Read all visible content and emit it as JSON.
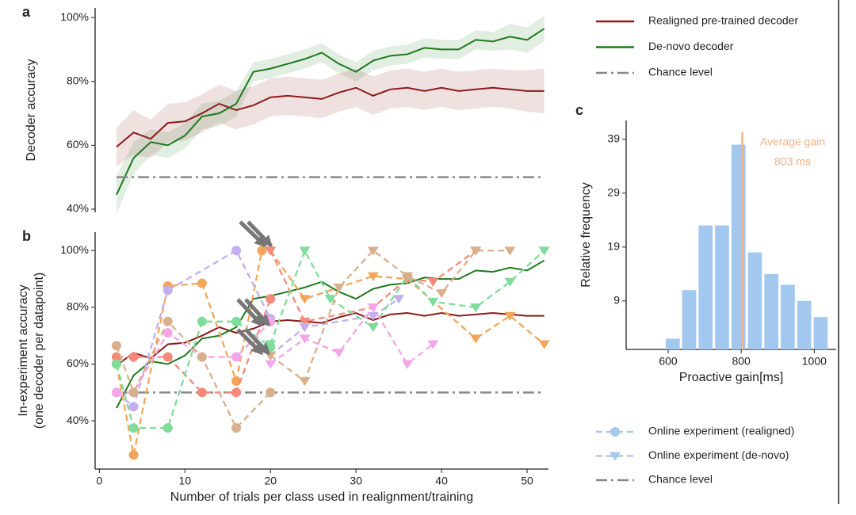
{
  "chart_data": [
    {
      "type": "line",
      "label": "a",
      "ylabel": "Decoder accuracy",
      "xlim": [
        -0.5,
        52.5
      ],
      "ylim": [
        39,
        103
      ],
      "yticks": [
        {
          "value": 40,
          "label": "40%"
        },
        {
          "value": 60,
          "label": "60%"
        },
        {
          "value": 80,
          "label": "80%"
        },
        {
          "value": 100,
          "label": "100%"
        }
      ],
      "series": [
        {
          "name": "Realigned pre-trained decoder",
          "color": "#8b1a1a",
          "x": [
            2,
            4,
            6,
            8,
            10,
            12,
            14,
            16,
            18,
            20,
            22,
            24,
            26,
            28,
            30,
            32,
            34,
            36,
            38,
            40,
            42,
            44,
            46,
            48,
            50,
            52
          ],
          "values": [
            59.5,
            64,
            62,
            67,
            67.5,
            70,
            73,
            71,
            72.5,
            75,
            75.5,
            75,
            74.5,
            76.5,
            78,
            75.5,
            77.5,
            78,
            77,
            78,
            77,
            77.5,
            78,
            77.5,
            77,
            77
          ],
          "error": [
            6,
            7,
            6,
            6,
            6,
            6,
            6,
            6,
            6,
            6,
            6,
            6,
            6,
            6,
            6,
            6,
            6,
            6,
            6,
            6,
            6,
            6,
            6,
            6,
            6.5,
            7
          ]
        },
        {
          "name": "De-novo decoder",
          "color": "#1e7a1e",
          "x": [
            2,
            4,
            6,
            8,
            10,
            12,
            14,
            16,
            18,
            20,
            22,
            24,
            26,
            28,
            30,
            32,
            34,
            36,
            38,
            40,
            42,
            44,
            46,
            48,
            50,
            52
          ],
          "values": [
            44.5,
            56,
            61,
            60,
            63,
            69,
            70,
            73,
            83,
            84,
            85.5,
            87,
            89,
            85.5,
            83,
            86.5,
            88,
            88.5,
            90.5,
            90,
            90,
            93,
            92.5,
            94,
            93,
            96.5
          ],
          "error": [
            6,
            5,
            4,
            4,
            4,
            4,
            4,
            4,
            3,
            3,
            3,
            3,
            3,
            3,
            3,
            3,
            3,
            3,
            3,
            3,
            3,
            3,
            3,
            4,
            4,
            4
          ]
        },
        {
          "name": "Chance level",
          "color": "#888888",
          "dash": "dashdot",
          "x": [
            2,
            52
          ],
          "values": [
            50,
            50
          ]
        }
      ]
    },
    {
      "type": "line",
      "label": "b",
      "ylabel": [
        "In-experiment accuracy",
        "(one decoder per datapoint)"
      ],
      "xlabel": "Number of trials per class used in realignment/training",
      "xlim": [
        -0.5,
        52.5
      ],
      "xticks": [
        0,
        10,
        20,
        30,
        40,
        50
      ],
      "ylim": [
        23,
        106.5
      ],
      "yticks": [
        {
          "value": 40,
          "label": "40%"
        },
        {
          "value": 60,
          "label": "60%"
        },
        {
          "value": 80,
          "label": "80%"
        },
        {
          "value": 100,
          "label": "100%"
        }
      ],
      "series": [
        {
          "color": "#8b1a1a",
          "x": [
            2,
            4,
            6,
            8,
            10,
            12,
            14,
            16,
            18,
            20,
            22,
            24,
            26,
            28,
            30,
            32,
            34,
            36,
            38,
            40,
            42,
            44,
            46,
            48,
            50,
            52
          ],
          "values": [
            59.5,
            64,
            62,
            67,
            67.5,
            70,
            73,
            71,
            72.5,
            75,
            75.5,
            75,
            74.5,
            76.5,
            78,
            75.5,
            77.5,
            78,
            77,
            78,
            77,
            77.5,
            78,
            77.5,
            77,
            77
          ]
        },
        {
          "color": "#1e7a1e",
          "x": [
            2,
            4,
            6,
            8,
            10,
            12,
            14,
            16,
            18,
            20,
            22,
            24,
            26,
            28,
            30,
            32,
            34,
            36,
            38,
            40,
            42,
            44,
            46,
            48,
            50,
            52
          ],
          "values": [
            44.5,
            56,
            61,
            60,
            63,
            69,
            70,
            73,
            83,
            84,
            85.5,
            87,
            89,
            85.5,
            83,
            86.5,
            88,
            88.5,
            90.5,
            90,
            90,
            93,
            92.5,
            94,
            93,
            96.5
          ]
        },
        {
          "color": "#888888",
          "dash": "dashdot",
          "x": [
            2,
            52
          ],
          "values": [
            50,
            50
          ]
        },
        {
          "color": "#f5a55a",
          "marker": "circle",
          "x": [
            2,
            4,
            8,
            12,
            16,
            19
          ],
          "values": [
            60,
            28,
            87.5,
            88.5,
            54,
            100
          ]
        },
        {
          "color": "#f5a55a",
          "marker": "triangle",
          "x": [
            20,
            24,
            32,
            36,
            44,
            48,
            52
          ],
          "values": [
            100,
            83,
            91,
            90,
            69,
            77,
            67
          ]
        },
        {
          "color": "#f58a7a",
          "marker": "circle",
          "x": [
            2,
            4,
            8,
            12,
            16,
            20
          ],
          "values": [
            62.5,
            62.5,
            62.5,
            50,
            50,
            83
          ]
        },
        {
          "color": "#f58a7a",
          "marker": "triangle",
          "x": [
            20,
            24,
            32,
            36,
            39,
            44
          ],
          "values": [
            100,
            75,
            80,
            90,
            89,
            100
          ]
        },
        {
          "color": "#c3aef0",
          "marker": "circle",
          "x": [
            2,
            4,
            8,
            16,
            20
          ],
          "values": [
            50,
            45,
            86,
            100,
            76
          ]
        },
        {
          "color": "#c3aef0",
          "marker": "triangle",
          "x": [
            20,
            24,
            32,
            35
          ],
          "values": [
            63,
            73,
            77,
            83
          ]
        },
        {
          "color": "#7fdc9a",
          "marker": "circle",
          "x": [
            2,
            4,
            8,
            12,
            16,
            20
          ],
          "values": [
            60,
            37.5,
            37.5,
            75,
            75,
            66
          ]
        },
        {
          "color": "#7fdc9a",
          "marker": "triangle",
          "x": [
            20,
            24,
            27,
            32,
            36,
            39,
            44,
            48,
            52
          ],
          "values": [
            67,
            100,
            83,
            73,
            91,
            82,
            80,
            89,
            100
          ]
        },
        {
          "color": "#f3a6e8",
          "marker": "circle",
          "x": [
            2,
            4,
            8,
            12,
            16,
            20
          ],
          "values": [
            50,
            50,
            71,
            62.5,
            62.5,
            75
          ]
        },
        {
          "color": "#f3a6e8",
          "marker": "triangle",
          "x": [
            20,
            24,
            28,
            32,
            36,
            39
          ],
          "values": [
            60,
            69,
            64,
            80,
            60,
            67
          ]
        },
        {
          "color": "#d9b08c",
          "marker": "circle",
          "x": [
            2,
            4,
            8,
            12,
            16,
            20
          ],
          "values": [
            66.5,
            50,
            75,
            62.5,
            37.5,
            50
          ]
        },
        {
          "color": "#d9b08c",
          "marker": "triangle",
          "x": [
            20,
            24,
            28,
            32,
            36,
            40,
            44,
            48
          ],
          "values": [
            63,
            54,
            87,
            100,
            91,
            85,
            100,
            100
          ]
        }
      ],
      "legend": [
        {
          "label": "Online experiment (realigned)",
          "marker": "circle",
          "color": "#a8c8ec"
        },
        {
          "label": "Online experiment (de-novo)",
          "marker": "triangle",
          "color": "#a8c8ec"
        },
        {
          "label": "Chance level",
          "dash": "dashdot",
          "color": "#888888"
        }
      ]
    },
    {
      "type": "histogram",
      "label": "c",
      "xlabel": "Proactive gain[ms]",
      "ylabel": "Relative frequency",
      "bins": [
        590,
        635,
        680,
        725,
        770,
        815,
        860,
        905,
        950,
        995,
        1040
      ],
      "values": [
        2,
        11,
        23,
        23,
        38,
        18,
        14,
        12,
        9,
        6
      ],
      "color": "#a3c8f0",
      "xlim": [
        485,
        1060
      ],
      "xticks": [
        600,
        800,
        1000
      ],
      "ylim": [
        0,
        42.5
      ],
      "yticks": [
        9,
        19,
        29,
        39
      ],
      "annotation": {
        "x": 803,
        "color": "#f4b183",
        "lines": [
          "Average gain",
          "803 ms"
        ]
      }
    }
  ]
}
